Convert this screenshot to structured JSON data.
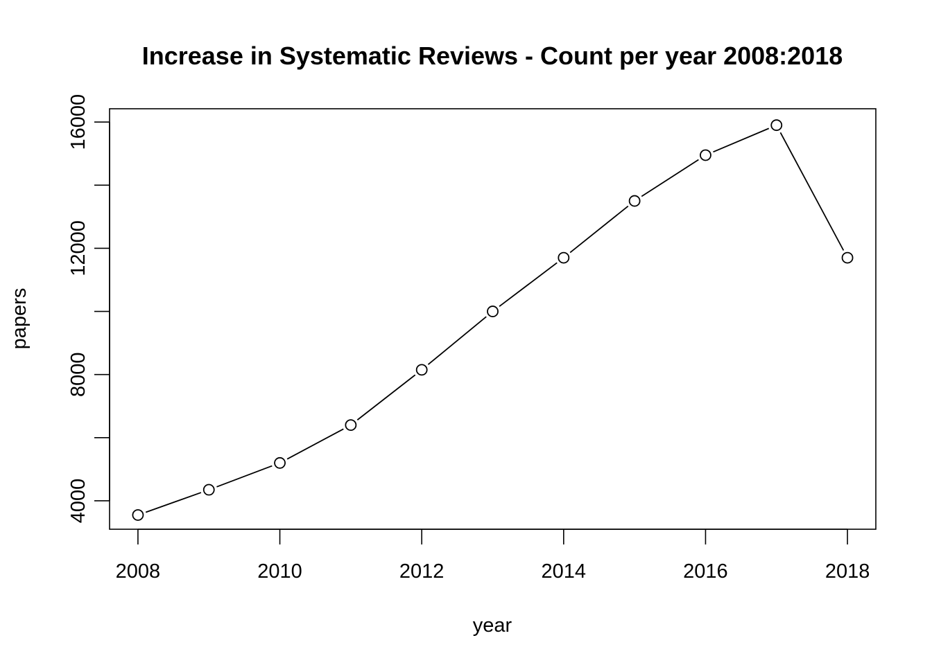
{
  "chart_data": {
    "type": "line",
    "title": "Increase in Systematic Reviews - Count per year 2008:2018",
    "xlabel": "year",
    "ylabel": "papers",
    "x": [
      2008,
      2009,
      2010,
      2011,
      2012,
      2013,
      2014,
      2015,
      2016,
      2017,
      2018
    ],
    "series": [
      {
        "values": [
          3550,
          4350,
          5200,
          6400,
          8150,
          10000,
          11700,
          13500,
          14950,
          15900,
          11700
        ]
      }
    ],
    "xticks": [
      "2008",
      "2010",
      "2012",
      "2014",
      "2016",
      "2018"
    ],
    "yticks": [
      "4000",
      "8000",
      "12000",
      "16000"
    ],
    "xlim": [
      2007.6,
      2018.4
    ],
    "ylim": [
      3100,
      16420
    ],
    "marker": "open-circle",
    "line_color": "#000000",
    "grid": false,
    "legend": "none"
  }
}
